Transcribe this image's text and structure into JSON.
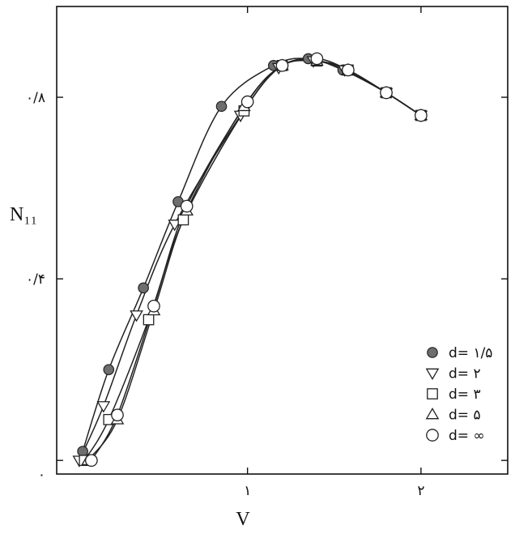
{
  "chart_data": {
    "type": "line",
    "title": "",
    "xlabel": "V",
    "ylabel": "N₁₁",
    "xlim": [
      -0.1,
      2.5
    ],
    "ylim": [
      -0.03,
      1.0
    ],
    "x_ticks": [
      {
        "value": 1,
        "label": "۱"
      },
      {
        "value": 2,
        "label": "۲"
      }
    ],
    "y_ticks": [
      {
        "value": 0,
        "label": "۰"
      },
      {
        "value": 0.4,
        "label": "۰/۴"
      },
      {
        "value": 0.8,
        "label": "۰/۸"
      }
    ],
    "grid": false,
    "legend_position": "bottom-right",
    "series": [
      {
        "name": "d= ۱/۵",
        "marker": "filled-circle",
        "x": [
          0.05,
          0.2,
          0.4,
          0.6,
          0.85,
          1.15,
          1.35,
          1.55,
          1.8,
          2.0
        ],
        "y": [
          0.02,
          0.2,
          0.38,
          0.57,
          0.78,
          0.87,
          0.885,
          0.86,
          0.81,
          0.76
        ]
      },
      {
        "name": "d= ۲",
        "marker": "triangle-down",
        "x": [
          0.03,
          0.17,
          0.36,
          0.58,
          0.96,
          1.18,
          1.38,
          1.56,
          1.8,
          2.0
        ],
        "y": [
          0.0,
          0.12,
          0.32,
          0.52,
          0.76,
          0.865,
          0.88,
          0.86,
          0.81,
          0.76
        ]
      },
      {
        "name": "d= ۳",
        "marker": "square",
        "x": [
          0.06,
          0.2,
          0.43,
          0.63,
          0.98,
          1.2,
          1.4,
          1.58,
          1.8,
          2.0
        ],
        "y": [
          0.0,
          0.09,
          0.31,
          0.53,
          0.77,
          0.87,
          0.88,
          0.86,
          0.81,
          0.76
        ]
      },
      {
        "name": "d= ۵",
        "marker": "triangle-up",
        "x": [
          0.08,
          0.25,
          0.46,
          0.65,
          0.98,
          1.2,
          1.4,
          1.58,
          1.8,
          2.0
        ],
        "y": [
          0.0,
          0.09,
          0.33,
          0.55,
          0.78,
          0.87,
          0.88,
          0.86,
          0.81,
          0.76
        ]
      },
      {
        "name": "d= ∞",
        "marker": "open-circle",
        "x": [
          0.1,
          0.25,
          0.46,
          0.65,
          1.0,
          1.2,
          1.4,
          1.58,
          1.8,
          2.0
        ],
        "y": [
          0.0,
          0.1,
          0.34,
          0.56,
          0.79,
          0.87,
          0.885,
          0.86,
          0.81,
          0.76
        ]
      }
    ]
  }
}
